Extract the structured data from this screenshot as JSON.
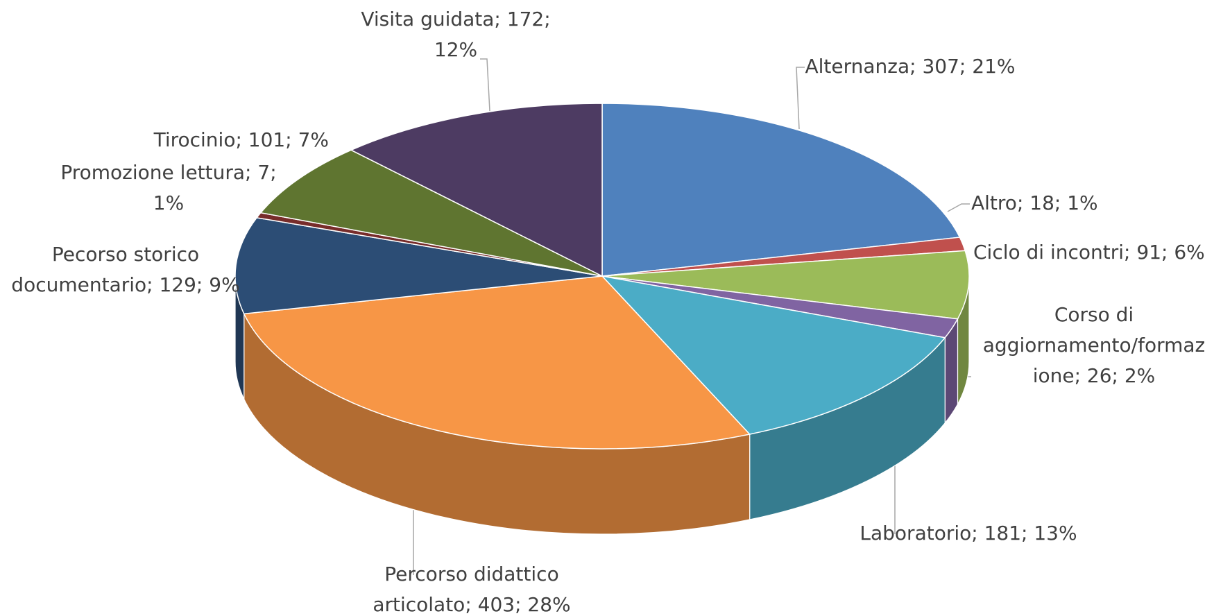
{
  "chart_data": {
    "type": "pie3d",
    "values": [
      307,
      18,
      91,
      26,
      181,
      403,
      129,
      7,
      101,
      172
    ],
    "value_labels": [
      [
        "Alternanza; 307; 21%"
      ],
      [
        "Altro; 18; 1%"
      ],
      [
        "Ciclo di incontri; 91; 6%"
      ],
      [
        "Corso di",
        "aggiornamento/formaz",
        "ione; 26; 2%"
      ],
      [
        "Laboratorio; 181; 13%"
      ],
      [
        "Percorso didattico",
        "articolato; 403; 28%"
      ],
      [
        "Pecorso storico",
        "documentario; 129; 9%"
      ],
      [
        "Promozione lettura; 7;",
        "1%"
      ],
      [
        "Tirocinio; 101; 7%"
      ],
      [
        "Visita guidata; 172;",
        "12%"
      ]
    ],
    "colors": [
      "#4f81bd",
      "#c0504d",
      "#9bbb59",
      "#8064a2",
      "#4bacc6",
      "#f79646",
      "#2c4d75",
      "#772c2a",
      "#5f7530",
      "#4d3b62"
    ]
  }
}
